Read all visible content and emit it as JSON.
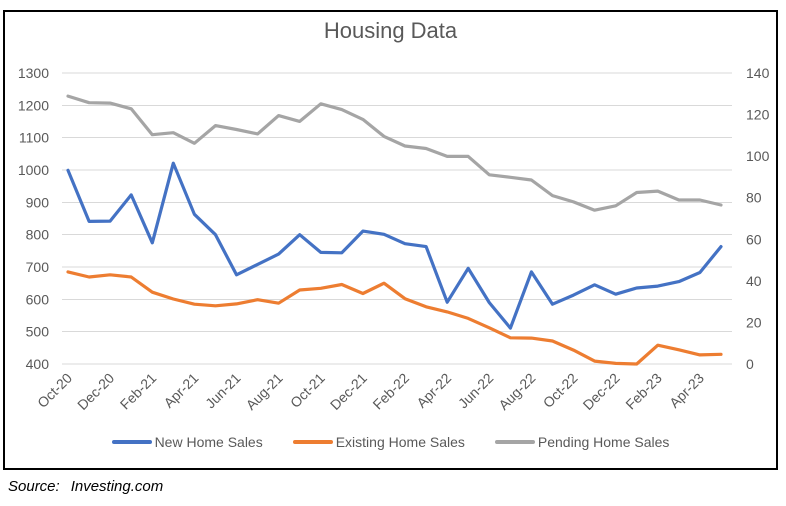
{
  "title": "Housing Data",
  "source": {
    "label": "Source:",
    "value": "Investing.com"
  },
  "colors": {
    "new_home_sales": "#4472C4",
    "existing_home_sales": "#ED7D31",
    "pending_home_sales": "#A5A5A5",
    "gridline": "#D9D9D9",
    "text": "#595959",
    "border": "#000000",
    "background": "#FFFFFF"
  },
  "chart_data": {
    "type": "line",
    "title": "Housing Data",
    "grid": true,
    "legend_position": "bottom",
    "categories": [
      "Oct-20",
      "Nov-20",
      "Dec-20",
      "Jan-21",
      "Feb-21",
      "Mar-21",
      "Apr-21",
      "May-21",
      "Jun-21",
      "Jul-21",
      "Aug-21",
      "Sep-21",
      "Oct-21",
      "Nov-21",
      "Dec-21",
      "Jan-22",
      "Feb-22",
      "Mar-22",
      "Apr-22",
      "May-22",
      "Jun-22",
      "Jul-22",
      "Aug-22",
      "Sep-22",
      "Oct-22",
      "Nov-22",
      "Dec-22",
      "Jan-23",
      "Feb-23",
      "Mar-23",
      "Apr-23",
      "May-23"
    ],
    "x_tick_labels": [
      "Oct-20",
      "Dec-20",
      "Feb-21",
      "Apr-21",
      "Jun-21",
      "Aug-21",
      "Oct-21",
      "Dec-21",
      "Feb-22",
      "Apr-22",
      "Jun-22",
      "Aug-22",
      "Oct-22",
      "Dec-22",
      "Feb-23",
      "Apr-23"
    ],
    "series": [
      {
        "name": "New Home Sales",
        "axis": "left",
        "color": "#4472C4",
        "values": [
          999,
          841,
          842,
          923,
          775,
          1021,
          863,
          800,
          676,
          708,
          740,
          800,
          745,
          744,
          811,
          801,
          772,
          763,
          591,
          696,
          590,
          511,
          685,
          585,
          613,
          645,
          616,
          635,
          641,
          655,
          683,
          763
        ]
      },
      {
        "name": "Existing Home Sales",
        "axis": "left",
        "color": "#ED7D31",
        "values": [
          685,
          669,
          676,
          669,
          622,
          601,
          585,
          580,
          586,
          599,
          588,
          629,
          634,
          646,
          618,
          650,
          602,
          577,
          561,
          541,
          512,
          481,
          480,
          471,
          443,
          409,
          402,
          400,
          458,
          444,
          428,
          430
        ]
      },
      {
        "name": "Pending Home Sales",
        "axis": "right",
        "color": "#A5A5A5",
        "values": [
          128.9,
          125.7,
          125.5,
          122.8,
          110.3,
          111.3,
          106.2,
          114.7,
          112.8,
          110.7,
          119.5,
          116.7,
          125.2,
          122.4,
          117.7,
          109.5,
          104.9,
          103.7,
          99.9,
          99.9,
          91.0,
          89.8,
          88.5,
          81.0,
          78.0,
          74.0,
          76.1,
          82.5,
          83.2,
          78.9,
          78.9,
          76.5
        ]
      }
    ],
    "left_axis": {
      "min": 400,
      "max": 1300,
      "step": 100,
      "tick_labels": [
        "400",
        "500",
        "600",
        "700",
        "800",
        "900",
        "1000",
        "1100",
        "1200",
        "1300"
      ]
    },
    "right_axis": {
      "min": 0,
      "max": 140,
      "step": 20,
      "tick_labels": [
        "0",
        "20",
        "40",
        "60",
        "80",
        "100",
        "120",
        "140"
      ]
    }
  }
}
